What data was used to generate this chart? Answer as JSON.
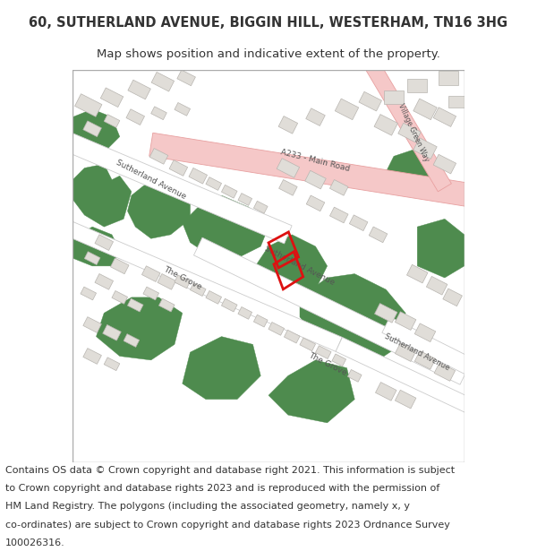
{
  "title": "60, SUTHERLAND AVENUE, BIGGIN HILL, WESTERHAM, TN16 3HG",
  "subtitle": "Map shows position and indicative extent of the property.",
  "copyright_lines": [
    "Contains OS data © Crown copyright and database right 2021. This information is subject",
    "to Crown copyright and database rights 2023 and is reproduced with the permission of",
    "HM Land Registry. The polygons (including the associated geometry, namely x, y",
    "co-ordinates) are subject to Crown copyright and database rights 2023 Ordnance Survey",
    "100026316."
  ],
  "map_bg": "#ffffff",
  "road_white": "#ffffff",
  "road_outline": "#cccccc",
  "green_color": "#4e8b4e",
  "pink_road_fill": "#f5c8c8",
  "pink_road_outline": "#e8a0a0",
  "plot_outline": "#dd1111",
  "building_fill": "#e0ddd8",
  "building_outline": "#b8b5b0",
  "text_color": "#333333",
  "road_label_color": "#555555",
  "border_color": "#aaaaaa",
  "title_fontsize": 10.5,
  "subtitle_fontsize": 9.5,
  "copyright_fontsize": 8.0
}
